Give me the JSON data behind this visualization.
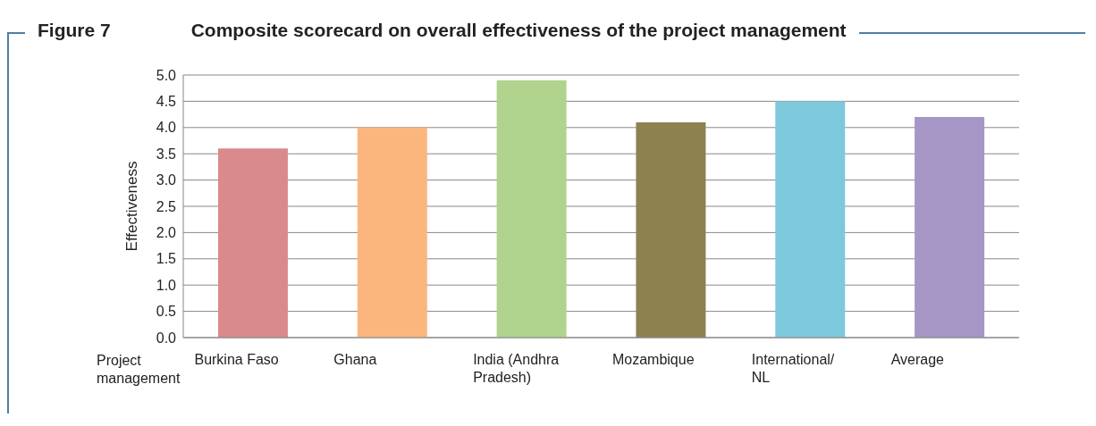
{
  "chart_data": {
    "type": "bar",
    "title": "Composite scorecard on overall effectiveness of the project management",
    "annotations": [
      "Figure 7"
    ],
    "xlabel": "Project management",
    "ylabel": "Effectiveness",
    "categories": [
      "Burkina Faso",
      "Ghana",
      "India (Andhra Pradesh)",
      "Mozambique",
      "International/ NL",
      "Average"
    ],
    "values": [
      3.6,
      4.0,
      4.9,
      4.1,
      4.5,
      4.2
    ],
    "colors": [
      "#d98a8c",
      "#fab67c",
      "#b0d38e",
      "#8e8150",
      "#7ec8dc",
      "#a596c6"
    ],
    "ylim": [
      0,
      5
    ],
    "yticks": [
      {
        "value": 0,
        "label": "0.0"
      },
      {
        "value": 0.5,
        "label": "0.5"
      },
      {
        "value": 1,
        "label": "1.0"
      },
      {
        "value": 1.5,
        "label": "1.5"
      },
      {
        "value": 2,
        "label": "2.0"
      },
      {
        "value": 2.5,
        "label": "2.5"
      },
      {
        "value": 3,
        "label": "3.0"
      },
      {
        "value": 3.5,
        "label": "3.5"
      },
      {
        "value": 4,
        "label": "4.0"
      },
      {
        "value": 4.5,
        "label": "4.5"
      },
      {
        "value": 5,
        "label": "5.0"
      }
    ],
    "grid": "y",
    "legend": false
  }
}
